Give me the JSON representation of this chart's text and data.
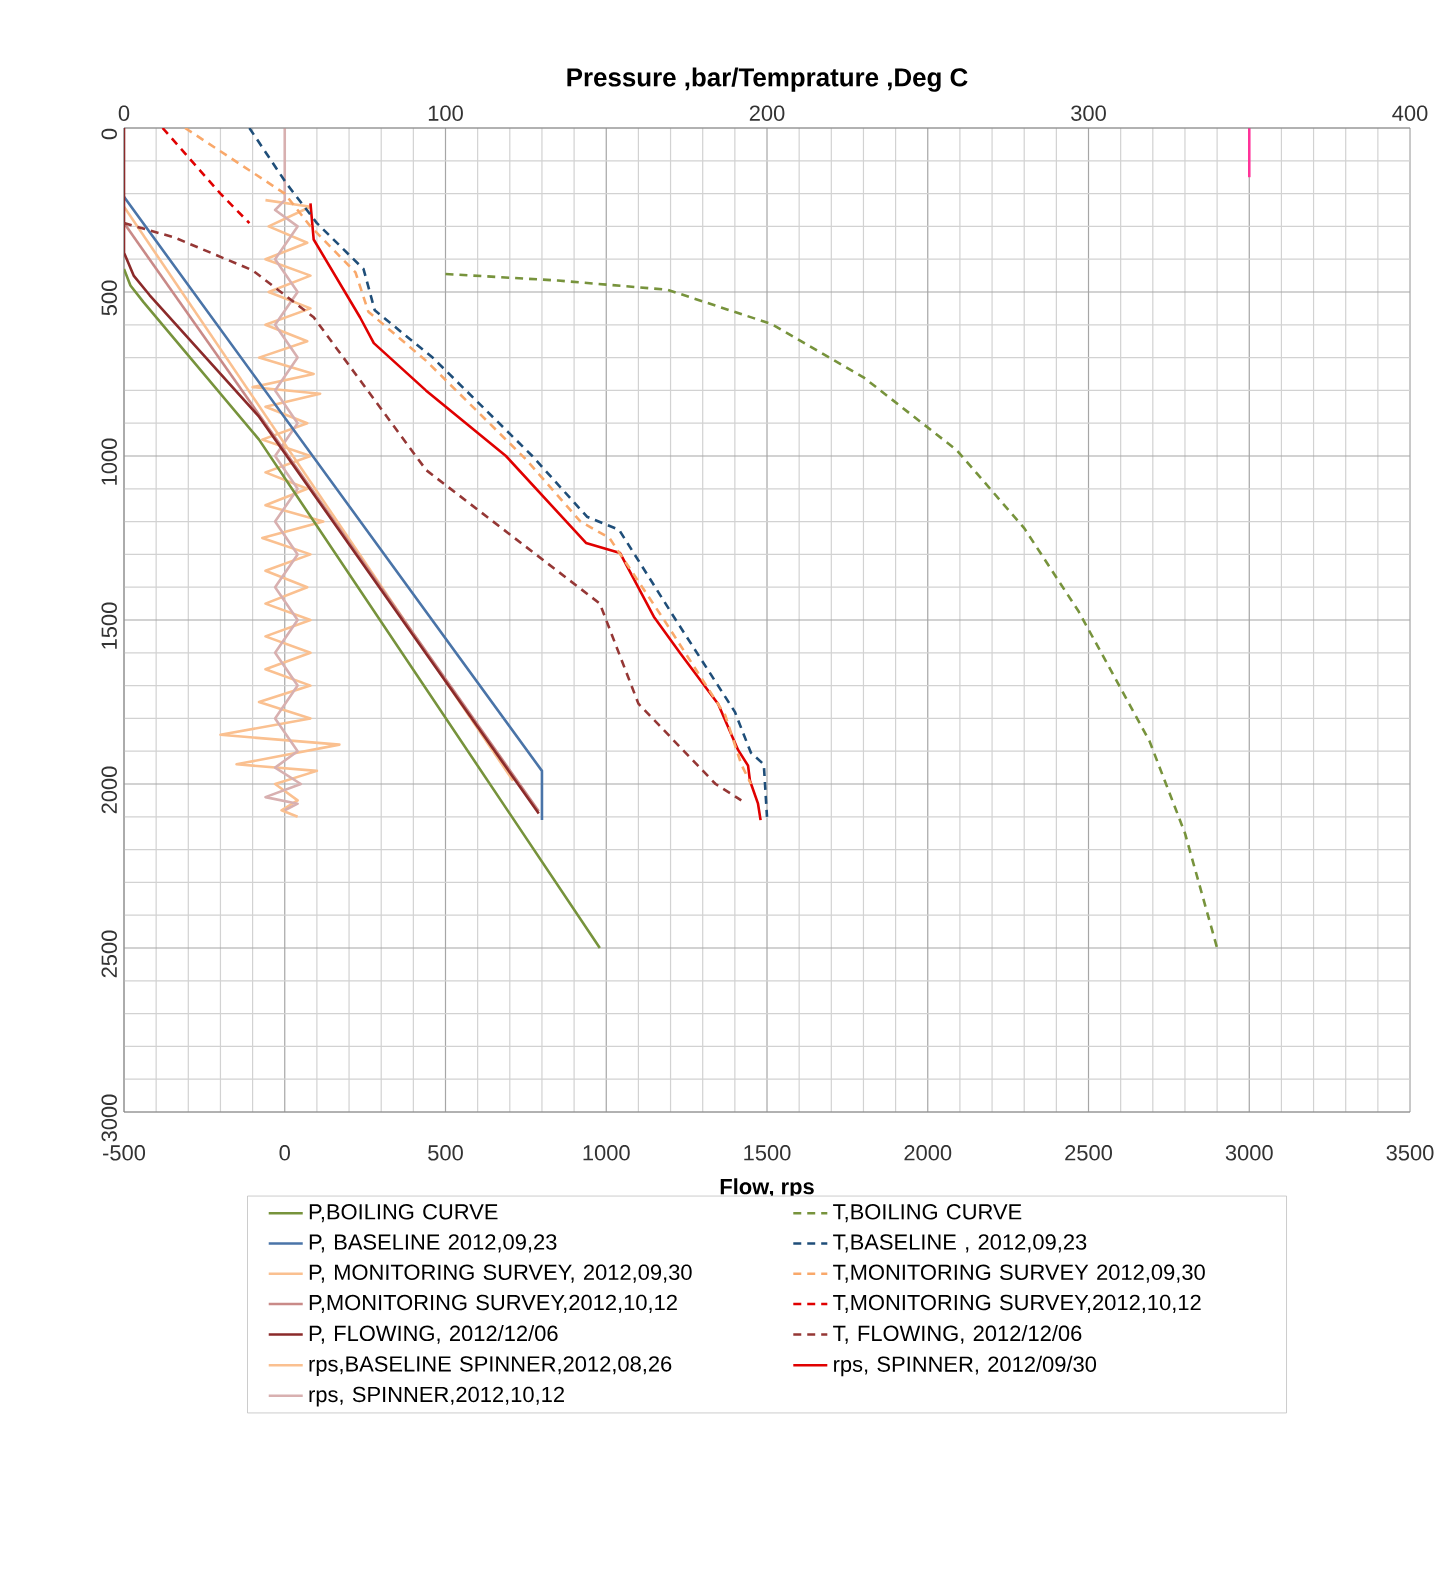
{
  "chart_data": {
    "type": "line",
    "x2label": "Pressure ,bar/Temprature ,Deg C",
    "xlabel": "Flow, rps",
    "xlim": [
      -500,
      3500
    ],
    "xticks": [
      -500,
      0,
      500,
      1000,
      1500,
      2000,
      2500,
      3000,
      3500
    ],
    "x2lim": [
      0,
      400
    ],
    "x2ticks": [
      0,
      100,
      200,
      300,
      400
    ],
    "ylim": [
      3000,
      0
    ],
    "yticks": [
      0,
      500,
      1000,
      1500,
      2000,
      2500,
      3000
    ],
    "grid": true,
    "legend": "bottom",
    "series": [
      {
        "name": "P,BOILING CURVE",
        "color": "#77933c",
        "axis": "x2",
        "line_style": "solid",
        "x": [
          0,
          2,
          6,
          12,
          42,
          148
        ],
        "values": [
          430,
          480,
          530,
          600,
          950,
          2500
        ]
      },
      {
        "name": "T,BOILING CURVE",
        "color": "#77933c",
        "axis": "x2",
        "line_style": "dashed",
        "x": [
          100,
          135,
          169,
          201.5,
          230,
          259,
          280,
          297,
          319,
          330,
          340
        ],
        "values": [
          445,
          465,
          493,
          598,
          760,
          982,
          1220,
          1475,
          1870,
          2150,
          2500
        ]
      },
      {
        "name": "P, BASELINE  2012,09,23",
        "color": "#4a74a8",
        "axis": "x2",
        "line_style": "solid",
        "x": [
          0,
          130,
          130
        ],
        "values": [
          210,
          1960,
          2110
        ]
      },
      {
        "name": "T,BASELINE , 2012,09,23",
        "color": "#1f4e79",
        "axis": "x2",
        "line_style": "dashed",
        "x": [
          39,
          50.6,
          60,
          74.5,
          78,
          96,
          127,
          144,
          154,
          171,
          190,
          195,
          199,
          200
        ],
        "values": [
          0,
          170,
          290,
          430,
          556,
          700,
          1000,
          1185,
          1225,
          1490,
          1780,
          1905,
          1940,
          2100
        ]
      },
      {
        "name": "P, MONITORING SURVEY,  2012,09,30",
        "color": "#fac090",
        "axis": "x2",
        "line_style": "solid",
        "x": [
          0,
          121
        ],
        "values": [
          240,
          1990
        ]
      },
      {
        "name": "T,MONITORING SURVEY 2012,09,30",
        "color": "#f9a86a",
        "axis": "x2",
        "line_style": "dashed",
        "x": [
          19,
          50,
          58,
          72,
          76,
          94,
          125,
          142,
          151,
          168,
          187,
          192,
          195
        ],
        "values": [
          0,
          200,
          300,
          440,
          560,
          710,
          1010,
          1200,
          1250,
          1500,
          1790,
          1940,
          2000
        ]
      },
      {
        "name": "P,MONITORING SURVEY,2012,10,12",
        "color": "#c98a88",
        "axis": "x2",
        "line_style": "solid",
        "x": [
          0,
          129
        ],
        "values": [
          290,
          2083
        ]
      },
      {
        "name": "T,MONITORING SURVEY,2012,10,12",
        "color": "#e00000",
        "axis": "x2",
        "line_style": "dashed",
        "x": [
          12,
          30,
          39
        ],
        "values": [
          0,
          200,
          290
        ]
      },
      {
        "name": "P, FLOWING, 2012/12/06",
        "color": "#8b2a2a",
        "axis": "x2",
        "line_style": "solid",
        "x": [
          0,
          0,
          3,
          8,
          42,
          129
        ],
        "values": [
          0,
          380,
          450,
          510,
          880,
          2090
        ]
      },
      {
        "name": "T, FLOWING, 2012/12/06",
        "color": "#953735",
        "axis": "x2",
        "line_style": "dashed",
        "x": [
          0,
          15.5,
          40,
          59,
          94,
          148,
          160,
          184,
          192
        ],
        "values": [
          290,
          333,
          434,
          577,
          1043,
          1450,
          1755,
          2000,
          2050
        ]
      },
      {
        "name": "rps,BASELINE SPINNER,2012,08,26",
        "color": "#fac090",
        "line_style": "solid",
        "x": [
          -60,
          80,
          -50,
          70,
          -60,
          80,
          -50,
          80,
          -60,
          70,
          -80,
          90,
          -100,
          110,
          -60,
          70,
          -70,
          80,
          -60,
          70,
          -60,
          120,
          -70,
          80,
          -60,
          70,
          -60,
          80,
          -60,
          80,
          -60,
          80,
          -80,
          80,
          -200,
          170,
          -150,
          100,
          -30,
          40,
          -10,
          40
        ],
        "values": [
          220,
          240,
          300,
          350,
          400,
          450,
          500,
          550,
          600,
          650,
          700,
          750,
          790,
          810,
          850,
          900,
          950,
          1000,
          1050,
          1100,
          1150,
          1200,
          1250,
          1300,
          1350,
          1400,
          1450,
          1500,
          1550,
          1600,
          1650,
          1700,
          1750,
          1800,
          1850,
          1880,
          1940,
          1960,
          2000,
          2050,
          2080,
          2100
        ]
      },
      {
        "name": "rps, SPINNER, 2012/09/30",
        "color": "#e00000",
        "line_style": "solid",
        "x": [
          80,
          90,
          234,
          277,
          439,
          688,
          937,
          1043,
          1148,
          1229,
          1348,
          1410,
          1441,
          1447,
          1472,
          1480
        ],
        "values": [
          230,
          340,
          577,
          656,
          800,
          1000,
          1265,
          1296,
          1490,
          1600,
          1756,
          1896,
          1944,
          1990,
          2060,
          2110
        ]
      },
      {
        "name": "rps, SPINNER,2012,10,12",
        "color": "#d8b0b0",
        "line_style": "solid",
        "x": [
          0,
          0,
          -30,
          40,
          -30,
          40,
          -30,
          40,
          -30,
          40,
          -30,
          40,
          -30,
          40,
          -30,
          40,
          -30,
          40,
          -30,
          40,
          -30,
          50,
          -60,
          40,
          0
        ],
        "values": [
          0,
          220,
          250,
          300,
          400,
          500,
          600,
          700,
          800,
          900,
          1000,
          1100,
          1200,
          1300,
          1400,
          1500,
          1600,
          1700,
          1800,
          1900,
          1950,
          2000,
          2040,
          2060,
          2080
        ]
      },
      {
        "color": "#ff3399",
        "line_style": "solid",
        "x": [
          3000,
          3000
        ],
        "values": [
          0,
          150
        ]
      }
    ]
  }
}
